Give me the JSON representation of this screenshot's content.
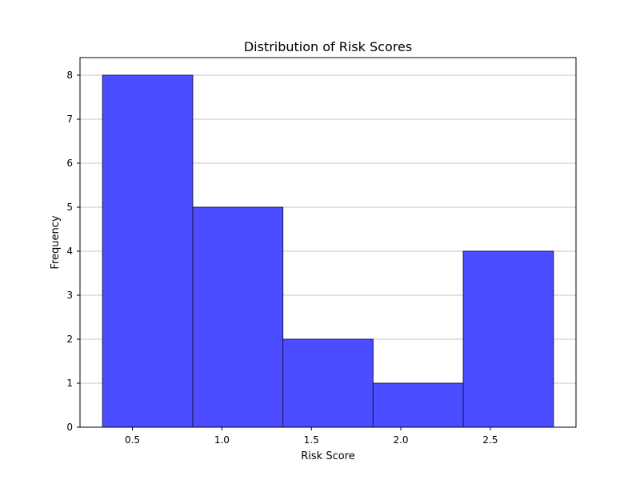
{
  "chart_data": {
    "type": "bar",
    "title": "Distribution of Risk Scores",
    "xlabel": "Risk Score",
    "ylabel": "Frequency",
    "bins": [
      {
        "start": 0.333,
        "end": 0.837,
        "count": 8
      },
      {
        "start": 0.837,
        "end": 1.341,
        "count": 5
      },
      {
        "start": 1.341,
        "end": 1.845,
        "count": 2
      },
      {
        "start": 1.845,
        "end": 2.349,
        "count": 1
      },
      {
        "start": 2.349,
        "end": 2.853,
        "count": 4
      }
    ],
    "xlim": [
      0.207,
      2.979
    ],
    "ylim": [
      0,
      8.4
    ],
    "xticks": [
      0.5,
      1.0,
      1.5,
      2.0,
      2.5
    ],
    "xtick_labels": [
      "0.5",
      "1.0",
      "1.5",
      "2.0",
      "2.5"
    ],
    "yticks": [
      0,
      1,
      2,
      3,
      4,
      5,
      6,
      7,
      8
    ],
    "ytick_labels": [
      "0",
      "1",
      "2",
      "3",
      "4",
      "5",
      "6",
      "7",
      "8"
    ],
    "grid": {
      "x": false,
      "y": true
    },
    "colors": {
      "bar_fill": "#4b4bff",
      "bar_edge": "#1a1a55",
      "grid": "#b0b0b0",
      "axes": "#000000"
    }
  }
}
